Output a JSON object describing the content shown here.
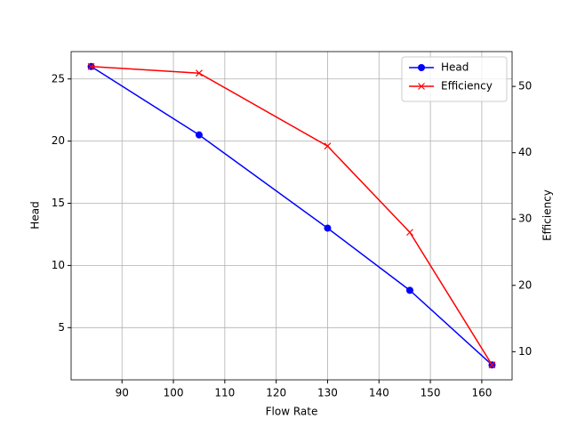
{
  "chart_data": {
    "type": "line",
    "xlabel": "Flow Rate",
    "ylabel": "Head",
    "y2label": "Efficiency",
    "x": [
      84,
      105,
      130,
      146,
      162
    ],
    "series": [
      {
        "name": "Head",
        "color": "#0000ff",
        "marker": "o",
        "values": [
          26,
          20.5,
          13,
          8,
          2
        ]
      },
      {
        "name": "Efficiency",
        "color": "#ff0000",
        "marker": "x",
        "axis": "y2",
        "values": [
          53,
          52,
          41,
          28,
          8
        ]
      }
    ],
    "xlim": [
      80.1,
      165.9
    ],
    "xticks": [
      90,
      100,
      110,
      120,
      130,
      140,
      150,
      160
    ],
    "ylim": [
      0.8,
      27.2
    ],
    "yticks": [
      5,
      10,
      15,
      20,
      25
    ],
    "y2lim": [
      5.75,
      55.25
    ],
    "y2ticks": [
      10,
      20,
      30,
      40,
      50
    ],
    "grid": true,
    "legend": "upper right"
  }
}
